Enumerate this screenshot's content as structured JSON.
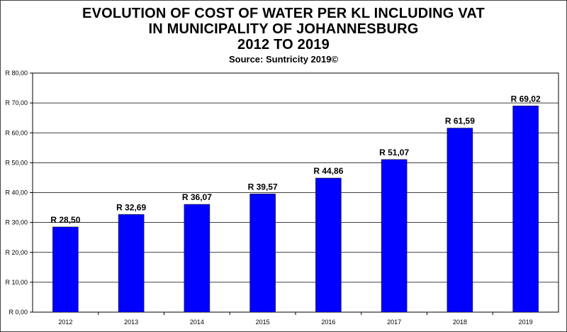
{
  "chart_data": {
    "type": "bar",
    "title_lines": [
      "EVOLUTION OF COST OF WATER PER KL INCLUDING VAT",
      "IN MUNICIPALITY OF JOHANNESBURG",
      "2012 TO 2019"
    ],
    "subtitle": "Source: Suntricity 2019©",
    "categories": [
      "2012",
      "2013",
      "2014",
      "2015",
      "2016",
      "2017",
      "2018",
      "2019"
    ],
    "values": [
      28.5,
      32.69,
      36.07,
      39.57,
      44.86,
      51.07,
      61.59,
      69.02
    ],
    "data_labels": [
      "R 28,50",
      "R 32,69",
      "R 36,07",
      "R 39,57",
      "R 44,86",
      "R 51,07",
      "R 61,59",
      "R 69,02"
    ],
    "yticks": [
      "R 0,00",
      "R 10,00",
      "R 20,00",
      "R 30,00",
      "R 40,00",
      "R 50,00",
      "R 60,00",
      "R 70,00",
      "R 80,00"
    ],
    "ylim": [
      0,
      80
    ],
    "grid": true,
    "bar_color": "#0000ff"
  }
}
